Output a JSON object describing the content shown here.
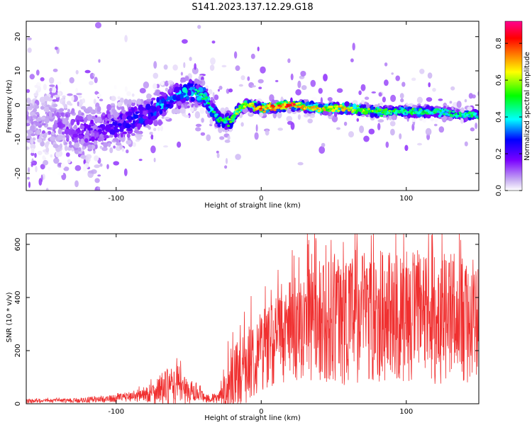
{
  "title": "S141.2023.137.12.29.G18",
  "colors": {
    "snr_line": "#f03030",
    "axes": "#000000",
    "colormap": [
      "#ffffff",
      "#c9b0f2",
      "#7a00ff",
      "#0000ff",
      "#00ffff",
      "#00ff00",
      "#ffff00",
      "#ff8000",
      "#ff0000",
      "#ff0090"
    ]
  },
  "chart_data": [
    {
      "type": "heatmap",
      "xlabel": "Height of straight line (km)",
      "ylabel": "Frequency (Hz)",
      "xlim": [
        -162,
        150
      ],
      "ylim": [
        -25,
        24.5
      ],
      "x_ticks": [
        -100,
        0,
        100
      ],
      "y_ticks": [
        -20,
        -10,
        0,
        10,
        20
      ],
      "colorbar": {
        "label": "Normalized spectral amplitude",
        "range": [
          0.0,
          0.92
        ],
        "ticks": [
          0.0,
          0.2,
          0.4,
          0.6,
          0.8
        ]
      },
      "ridge": {
        "x": [
          -160,
          -140,
          -120,
          -100,
          -80,
          -60,
          -50,
          -40,
          -30,
          -22,
          -15,
          -10,
          0,
          20,
          40,
          60,
          80,
          100,
          120,
          140,
          150
        ],
        "frequency": [
          -5,
          -6,
          -8,
          -6,
          -3,
          2,
          4,
          3,
          -4,
          -5,
          -1,
          0,
          -1,
          0,
          -1,
          -1,
          -2,
          -2,
          -2,
          -3,
          -3
        ],
        "amplitude": [
          0.08,
          0.12,
          0.18,
          0.22,
          0.3,
          0.38,
          0.42,
          0.45,
          0.5,
          0.55,
          0.6,
          0.65,
          0.75,
          0.82,
          0.65,
          0.7,
          0.55,
          0.5,
          0.48,
          0.45,
          0.45
        ],
        "spread_hz": [
          14,
          14,
          12,
          10,
          8,
          6,
          6,
          5,
          4,
          3,
          2,
          2,
          2,
          2,
          2,
          2,
          2,
          2,
          2,
          2,
          2
        ]
      }
    },
    {
      "type": "line",
      "xlabel": "Height of straight line (km)",
      "ylabel": "SNR (10 * v/v)",
      "xlim": [
        -162,
        150
      ],
      "ylim": [
        0,
        640
      ],
      "x_ticks": [
        -100,
        0,
        100
      ],
      "y_ticks": [
        0,
        200,
        400,
        600
      ],
      "series": [
        {
          "envelope_x": [
            -162,
            -140,
            -120,
            -100,
            -90,
            -80,
            -75,
            -70,
            -65,
            -60,
            -55,
            -50,
            -45,
            -40,
            -35,
            -30,
            -27,
            -25,
            -22,
            -20,
            -15,
            -10,
            -5,
            0,
            10,
            20,
            30,
            40,
            50,
            60,
            70,
            80,
            90,
            100,
            110,
            120,
            130,
            140,
            150
          ],
          "envelope_mean": [
            10,
            11,
            14,
            20,
            28,
            35,
            42,
            55,
            60,
            65,
            60,
            45,
            35,
            25,
            20,
            20,
            30,
            50,
            80,
            90,
            110,
            140,
            180,
            210,
            240,
            270,
            295,
            310,
            320,
            330,
            335,
            340,
            335,
            330,
            330,
            325,
            320,
            315,
            310
          ],
          "envelope_amp": [
            8,
            8,
            10,
            14,
            20,
            30,
            40,
            60,
            70,
            70,
            60,
            45,
            30,
            20,
            18,
            20,
            40,
            70,
            110,
            130,
            130,
            140,
            150,
            160,
            170,
            190,
            210,
            230,
            250,
            260,
            260,
            260,
            250,
            250,
            260,
            260,
            250,
            240,
            230
          ],
          "peak_x": 118,
          "peak_y": 640,
          "point_spacing": 0.2
        }
      ]
    }
  ]
}
